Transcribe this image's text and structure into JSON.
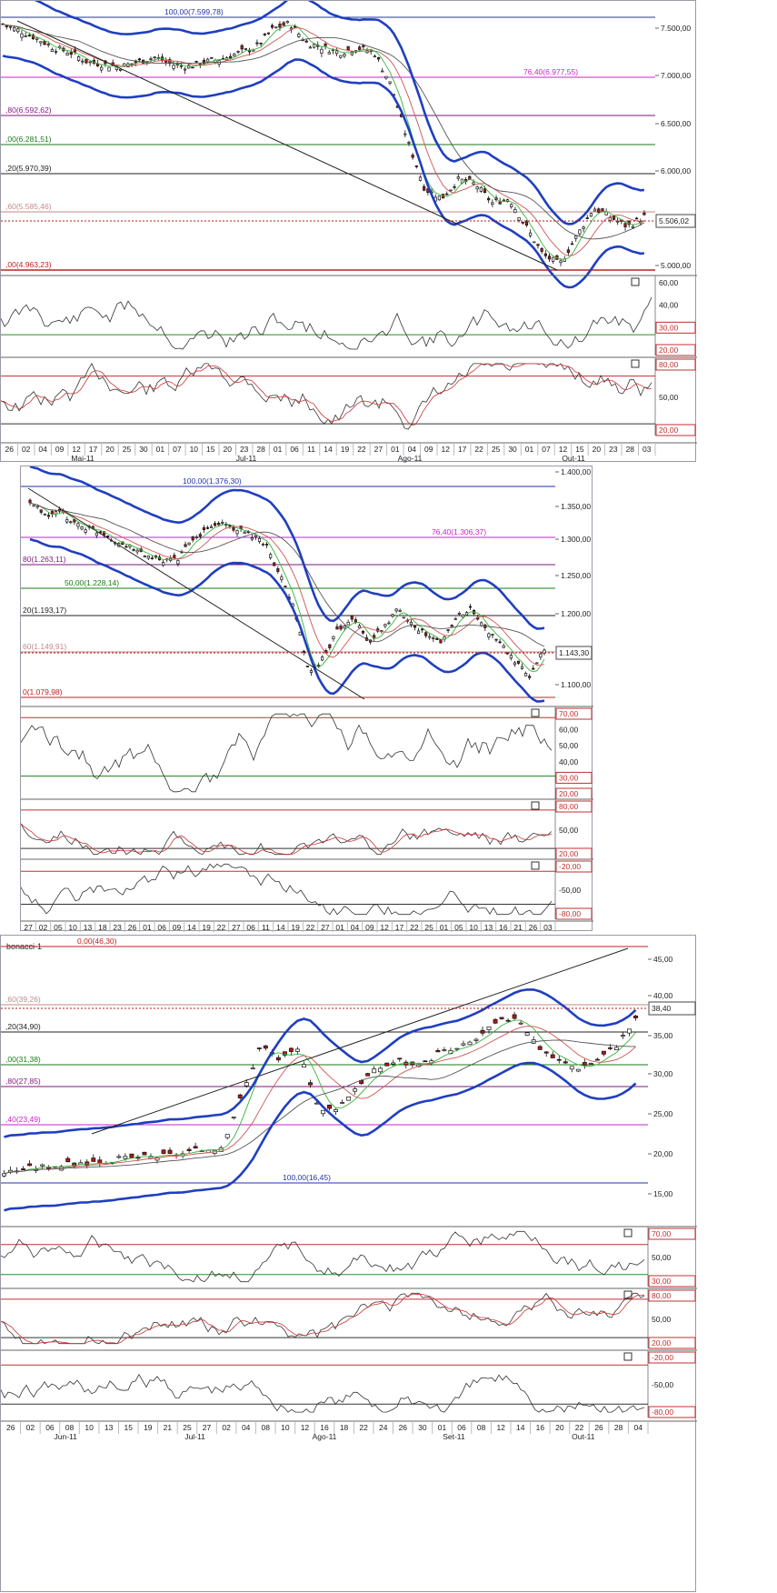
{
  "charts": [
    {
      "id": "c1",
      "right_price": "5.506,02",
      "yticks": [
        "7.500,00",
        "7.000,00",
        "6.500,00",
        "6.000,00",
        "5.000,00"
      ],
      "fib": [
        {
          "label": "100,00(7.599,78)",
          "color": "#2233aa"
        },
        {
          "label": "76,40(6.977,55)",
          "color": "#cc22cc"
        },
        {
          "label": ",80(6.592,62)",
          "color": "#7a1a7a"
        },
        {
          "label": ",00(6.281,51)",
          "color": "#1a7a1a"
        },
        {
          "label": ",20(5.970,39)",
          "color": "#222222"
        },
        {
          "label": ",60(5.585,46)",
          "color": "#c08a8a"
        },
        {
          "label": ",00(4.963,23)",
          "color": "#c02020"
        }
      ],
      "osc1_ticks": [
        "60,00",
        "40,00",
        "30,00",
        "20,00"
      ],
      "osc2_ticks": [
        "80,00",
        "50,00",
        "20,00"
      ],
      "xlabels": [
        "26",
        "02",
        "04",
        "09",
        "12",
        "17",
        "20",
        "25",
        "30",
        "01",
        "07",
        "10",
        "15",
        "20",
        "23",
        "28",
        "01",
        "06",
        "11",
        "14",
        "19",
        "22",
        "27",
        "01",
        "04",
        "09",
        "12",
        "17",
        "22",
        "25",
        "30",
        "01",
        "07",
        "12",
        "15",
        "20",
        "23",
        "28",
        "03"
      ],
      "months": [
        "Mai-11",
        "Jul-11",
        "Ago-11",
        "Out-11"
      ],
      "close_icon": "×"
    },
    {
      "id": "c2",
      "right_price": "1.143,30",
      "yticks": [
        "1.400,00",
        "1.350,00",
        "1.300,00",
        "1.250,00",
        "1.200,00",
        "1.100,00"
      ],
      "fib": [
        {
          "label": "100,00(1.376,30)",
          "color": "#2233aa"
        },
        {
          "label": "76,40(1.306,37)",
          "color": "#cc22cc"
        },
        {
          "label": "80(1.263,11)",
          "color": "#7a1a7a"
        },
        {
          "label": "50,00(1.228,14)",
          "color": "#1a7a1a"
        },
        {
          "label": "20(1.193,17)",
          "color": "#222222"
        },
        {
          "label": "60(1.149,91)",
          "color": "#c08a8a"
        },
        {
          "label": "0(1.079,98)",
          "color": "#c02020"
        }
      ],
      "osc1_ticks": [
        "70,00",
        "60,00",
        "50,00",
        "40,00",
        "30,00",
        "20,00"
      ],
      "osc2_ticks": [
        "80,00",
        "50,00",
        "20,00"
      ],
      "osc3_ticks": [
        "-20,00",
        "-50,00",
        "-80,00"
      ],
      "xlabels": [
        "27",
        "02",
        "05",
        "10",
        "13",
        "18",
        "23",
        "26",
        "01",
        "06",
        "09",
        "14",
        "19",
        "22",
        "27",
        "06",
        "11",
        "14",
        "19",
        "22",
        "27",
        "01",
        "04",
        "09",
        "12",
        "17",
        "22",
        "25",
        "01",
        "05",
        "10",
        "13",
        "16",
        "21",
        "26",
        "03"
      ],
      "close_icon": "×"
    },
    {
      "id": "c3",
      "top_label": "bonacci-1",
      "right_price": "38,40",
      "yticks": [
        "45,00",
        "40,00",
        "35,00",
        "30,00",
        "25,00",
        "20,00",
        "15,00"
      ],
      "fib": [
        {
          "label": "0,00(46,30)",
          "color": "#c02020"
        },
        {
          "label": ",60(39,26)",
          "color": "#c08a8a"
        },
        {
          "label": ",20(34,90)",
          "color": "#222222"
        },
        {
          "label": ",00(31,38)",
          "color": "#1a7a1a"
        },
        {
          "label": ",80(27,85)",
          "color": "#7a1a7a"
        },
        {
          "label": ",40(23,49)",
          "color": "#cc22cc"
        },
        {
          "label": "100,00(16,45)",
          "color": "#2233aa"
        }
      ],
      "osc1_ticks": [
        "70,00",
        "50,00",
        "30,00"
      ],
      "osc2_ticks": [
        "80,00",
        "50,00",
        "20,00"
      ],
      "osc3_ticks": [
        "-20,00",
        "-50,00",
        "-80,00"
      ],
      "xlabels": [
        "26",
        "02",
        "06",
        "08",
        "10",
        "13",
        "15",
        "19",
        "21",
        "25",
        "27",
        "02",
        "04",
        "08",
        "10",
        "12",
        "16",
        "18",
        "22",
        "24",
        "26",
        "30",
        "01",
        "06",
        "08",
        "12",
        "14",
        "16",
        "20",
        "22",
        "26",
        "28",
        "04"
      ],
      "months": [
        "Jun-11",
        "Jul-11",
        "Ago-11",
        "Set-11",
        "Out-11"
      ],
      "close_icon": "×"
    }
  ],
  "chart_data": [
    {
      "type": "line",
      "series": [
        {
          "values": [
            7550,
            7480,
            7400,
            7300,
            7250,
            7150,
            7120,
            7100,
            7150,
            7200,
            7120,
            7100,
            7150,
            7180,
            7250,
            7300,
            7500,
            7560,
            7350,
            7300,
            7250,
            7300,
            7250,
            6900,
            6300,
            5800,
            5700,
            5900,
            5850,
            5650,
            5700,
            5400,
            5100,
            5000,
            5300,
            5600,
            5500,
            5400,
            5506
          ]
        }
      ]
    },
    {
      "type": "line",
      "series": [
        {
          "values": [
            1360,
            1340,
            1345,
            1330,
            1320,
            1315,
            1300,
            1290,
            1280,
            1270,
            1275,
            1300,
            1320,
            1330,
            1320,
            1310,
            1300,
            1250,
            1200,
            1100,
            1130,
            1170,
            1190,
            1150,
            1170,
            1200,
            1180,
            1160,
            1150,
            1190,
            1200,
            1170,
            1150,
            1120,
            1100,
            1143
          ]
        }
      ]
    },
    {
      "type": "line",
      "series": [
        {
          "values": [
            18,
            18.5,
            18.8,
            19,
            19.3,
            19.5,
            19.8,
            20,
            20.2,
            20.5,
            21,
            21.5,
            28,
            35,
            33,
            34.5,
            26,
            27,
            30,
            32,
            33,
            32,
            34,
            34.5,
            36,
            38,
            39,
            35,
            33,
            32,
            33,
            35,
            38.4
          ]
        }
      ]
    }
  ]
}
